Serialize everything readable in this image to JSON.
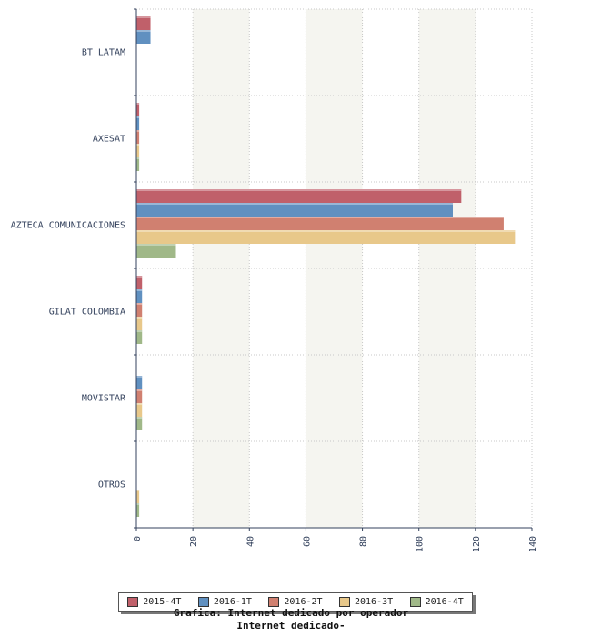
{
  "chart_data": {
    "type": "bar",
    "orientation": "horizontal",
    "categories": [
      "BT LATAM",
      "AXESAT",
      "AZTECA COMUNICACIONES",
      "GILAT COLOMBIA",
      "MOVISTAR",
      "OTROS"
    ],
    "series": [
      {
        "name": "2015-4T",
        "color": "#c0606a",
        "values": [
          5,
          1,
          115,
          2,
          0,
          0
        ]
      },
      {
        "name": "2016-1T",
        "color": "#6090c0",
        "values": [
          5,
          1,
          112,
          2,
          2,
          0
        ]
      },
      {
        "name": "2016-2T",
        "color": "#d08070",
        "values": [
          0,
          1,
          130,
          2,
          2,
          0
        ]
      },
      {
        "name": "2016-3T",
        "color": "#e8c88a",
        "values": [
          0,
          1,
          134,
          2,
          2,
          1
        ]
      },
      {
        "name": "2016-4T",
        "color": "#a0b888",
        "values": [
          0,
          1,
          14,
          2,
          2,
          1
        ]
      }
    ],
    "xlim": [
      0,
      140
    ],
    "x_ticks": [
      "0",
      "20",
      "40",
      "60",
      "80",
      "100",
      "120",
      "140"
    ],
    "grid": true,
    "legend_position": "bottom"
  },
  "caption": {
    "line1": "Grafica: Internet dedicado por operador",
    "line2": "Internet dedicado-"
  }
}
